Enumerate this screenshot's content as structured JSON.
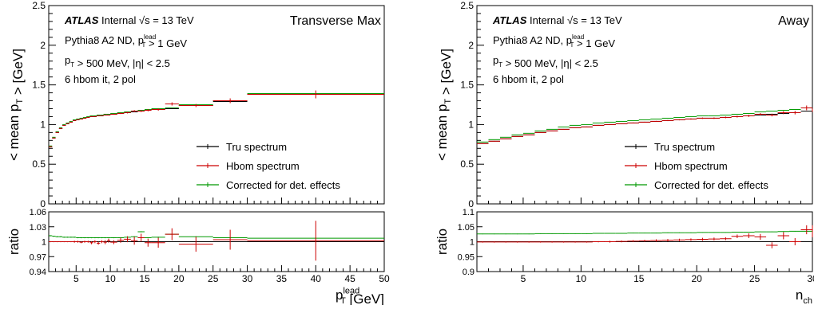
{
  "chart_data": [
    {
      "type": "line",
      "panel": "left",
      "title": "Transverse Max",
      "atlas_label": "ATLAS",
      "atlas_status": "Internal",
      "energy_label": "√s = 13 TeV",
      "info_lines": [
        "Pythia8 A2 ND, p_T^lead > 1 GeV",
        "p_T > 500 MeV, |η| < 2.5",
        "6 hbom it, 2 pol"
      ],
      "ylabel": "< mean p_T > [GeV]",
      "xlabel": "p_T^lead [GeV]",
      "ratio_ylabel": "ratio",
      "xlim": [
        1,
        50
      ],
      "ylim": [
        0,
        2.5
      ],
      "ratio_ylim": [
        0.94,
        1.06
      ],
      "yticks": [
        "0",
        "0.5",
        "1",
        "1.5",
        "2",
        "2.5"
      ],
      "xticks": [
        "5",
        "10",
        "15",
        "20",
        "25",
        "30",
        "35",
        "40",
        "45",
        "50"
      ],
      "ratio_yticks": [
        "0.94",
        "0.97",
        "1",
        "1.03",
        "1.06"
      ],
      "legend_position": "bottom-right",
      "legend": [
        {
          "name": "Tru spectrum",
          "color": "#000000"
        },
        {
          "name": "Hbom spectrum",
          "color": "#cc0000"
        },
        {
          "name": "Corrected for det. effects",
          "color": "#009900"
        }
      ],
      "bins": [
        [
          1,
          1.5
        ],
        [
          1.5,
          2
        ],
        [
          2,
          2.5
        ],
        [
          2.5,
          3
        ],
        [
          3,
          3.5
        ],
        [
          3.5,
          4
        ],
        [
          4,
          4.5
        ],
        [
          4.5,
          5
        ],
        [
          5,
          5.5
        ],
        [
          5.5,
          6
        ],
        [
          6,
          6.5
        ],
        [
          6.5,
          7
        ],
        [
          7,
          7.5
        ],
        [
          7.5,
          8
        ],
        [
          8,
          8.5
        ],
        [
          8.5,
          9
        ],
        [
          9,
          9.5
        ],
        [
          9.5,
          10
        ],
        [
          10,
          11
        ],
        [
          11,
          12
        ],
        [
          12,
          13
        ],
        [
          13,
          14
        ],
        [
          14,
          15
        ],
        [
          15,
          16
        ],
        [
          16,
          18
        ],
        [
          18,
          20
        ],
        [
          20,
          25
        ],
        [
          25,
          30
        ],
        [
          30,
          50
        ]
      ],
      "tru": [
        0.72,
        0.83,
        0.9,
        0.95,
        0.99,
        1.01,
        1.03,
        1.05,
        1.06,
        1.07,
        1.08,
        1.09,
        1.1,
        1.1,
        1.11,
        1.11,
        1.12,
        1.12,
        1.13,
        1.14,
        1.15,
        1.16,
        1.17,
        1.18,
        1.19,
        1.2,
        1.24,
        1.29,
        1.38
      ],
      "hbom": [
        0.72,
        0.83,
        0.9,
        0.95,
        0.99,
        1.01,
        1.03,
        1.05,
        1.06,
        1.07,
        1.08,
        1.09,
        1.1,
        1.1,
        1.11,
        1.11,
        1.12,
        1.12,
        1.13,
        1.14,
        1.15,
        1.17,
        1.17,
        1.18,
        1.19,
        1.26,
        1.24,
        1.3,
        1.38
      ],
      "hbom_err": [
        0.003,
        0.003,
        0.003,
        0.003,
        0.003,
        0.003,
        0.003,
        0.004,
        0.004,
        0.004,
        0.004,
        0.004,
        0.005,
        0.005,
        0.005,
        0.005,
        0.006,
        0.006,
        0.006,
        0.008,
        0.01,
        0.012,
        0.012,
        0.014,
        0.016,
        0.02,
        0.02,
        0.03,
        0.05
      ],
      "corr": [
        0.73,
        0.84,
        0.91,
        0.96,
        1.0,
        1.02,
        1.04,
        1.06,
        1.07,
        1.08,
        1.09,
        1.1,
        1.11,
        1.11,
        1.12,
        1.12,
        1.13,
        1.13,
        1.14,
        1.15,
        1.16,
        1.17,
        1.18,
        1.19,
        1.2,
        1.21,
        1.25,
        1.3,
        1.39
      ],
      "ratio_hbom": [
        1.0,
        1.0,
        1.0,
        1.0,
        1.0,
        1.0,
        1.0,
        1.0,
        1.0,
        0.999,
        1.0,
        1.0,
        0.998,
        1.0,
        0.997,
        1.0,
        0.999,
        1.002,
        0.999,
        1.003,
        1.005,
        1.002,
        1.008,
        0.998,
        0.998,
        1.015,
        0.995,
        1.004,
        1.002
      ],
      "ratio_hbom_err": [
        0.001,
        0.001,
        0.001,
        0.001,
        0.001,
        0.001,
        0.001,
        0.002,
        0.002,
        0.002,
        0.002,
        0.002,
        0.003,
        0.003,
        0.003,
        0.003,
        0.004,
        0.004,
        0.004,
        0.005,
        0.006,
        0.008,
        0.008,
        0.008,
        0.01,
        0.012,
        0.015,
        0.02,
        0.04
      ],
      "ratio_corr": [
        1.012,
        1.011,
        1.01,
        1.01,
        1.009,
        1.009,
        1.009,
        1.009,
        1.008,
        1.008,
        1.008,
        1.008,
        1.008,
        1.008,
        1.008,
        1.008,
        1.008,
        1.008,
        1.008,
        1.008,
        1.009,
        1.01,
        1.02,
        1.008,
        1.009,
        1.015,
        1.01,
        1.008,
        1.007
      ]
    },
    {
      "type": "line",
      "panel": "right",
      "title": "Away",
      "atlas_label": "ATLAS",
      "atlas_status": "Internal",
      "energy_label": "√s = 13 TeV",
      "info_lines": [
        "Pythia8 A2 ND, p_T^lead > 1 GeV",
        "p_T > 500 MeV, |η| < 2.5",
        "6 hbom it, 2 pol"
      ],
      "ylabel": "< mean p_T > [GeV]",
      "xlabel": "n_ch",
      "ratio_ylabel": "ratio",
      "xlim": [
        1,
        30
      ],
      "ylim": [
        0,
        2.5
      ],
      "ratio_ylim": [
        0.9,
        1.1
      ],
      "yticks": [
        "0",
        "0.5",
        "1",
        "1.5",
        "2",
        "2.5"
      ],
      "xticks": [
        "5",
        "10",
        "15",
        "20",
        "25",
        "30"
      ],
      "ratio_yticks": [
        "0.9",
        "0.95",
        "1",
        "1.05",
        "1.1"
      ],
      "legend_position": "bottom-right",
      "legend": [
        {
          "name": "Tru spectrum",
          "color": "#000000"
        },
        {
          "name": "Hbom spectrum",
          "color": "#cc0000"
        },
        {
          "name": "Corrected for det. effects",
          "color": "#009900"
        }
      ],
      "bins": [
        [
          1,
          2
        ],
        [
          2,
          3
        ],
        [
          3,
          4
        ],
        [
          4,
          5
        ],
        [
          5,
          6
        ],
        [
          6,
          7
        ],
        [
          7,
          8
        ],
        [
          8,
          9
        ],
        [
          9,
          10
        ],
        [
          10,
          11
        ],
        [
          11,
          12
        ],
        [
          12,
          13
        ],
        [
          13,
          14
        ],
        [
          14,
          15
        ],
        [
          15,
          16
        ],
        [
          16,
          17
        ],
        [
          17,
          18
        ],
        [
          18,
          19
        ],
        [
          19,
          20
        ],
        [
          20,
          21
        ],
        [
          21,
          22
        ],
        [
          22,
          23
        ],
        [
          23,
          24
        ],
        [
          24,
          25
        ],
        [
          25,
          26
        ],
        [
          26,
          27
        ],
        [
          27,
          28
        ],
        [
          28,
          29
        ],
        [
          29,
          30
        ],
        [
          30,
          31
        ]
      ],
      "tru": [
        0.76,
        0.79,
        0.82,
        0.85,
        0.87,
        0.9,
        0.92,
        0.94,
        0.96,
        0.97,
        0.99,
        1.0,
        1.01,
        1.02,
        1.03,
        1.04,
        1.05,
        1.06,
        1.07,
        1.08,
        1.08,
        1.09,
        1.1,
        1.11,
        1.12,
        1.13,
        1.14,
        1.15,
        1.17,
        1.18
      ],
      "hbom": [
        0.76,
        0.79,
        0.82,
        0.85,
        0.87,
        0.9,
        0.92,
        0.94,
        0.96,
        0.97,
        0.99,
        1.0,
        1.01,
        1.02,
        1.03,
        1.04,
        1.05,
        1.06,
        1.07,
        1.08,
        1.08,
        1.09,
        1.1,
        1.11,
        1.13,
        1.12,
        1.15,
        1.15,
        1.21,
        1.18
      ],
      "hbom_err": [
        0.004,
        0.004,
        0.004,
        0.004,
        0.004,
        0.004,
        0.004,
        0.004,
        0.004,
        0.005,
        0.005,
        0.005,
        0.005,
        0.006,
        0.006,
        0.006,
        0.007,
        0.007,
        0.008,
        0.009,
        0.01,
        0.011,
        0.012,
        0.014,
        0.015,
        0.017,
        0.02,
        0.022,
        0.03,
        0.02
      ],
      "corr": [
        0.78,
        0.81,
        0.84,
        0.87,
        0.89,
        0.92,
        0.94,
        0.97,
        0.99,
        1.0,
        1.02,
        1.03,
        1.04,
        1.05,
        1.06,
        1.07,
        1.08,
        1.09,
        1.1,
        1.11,
        1.11,
        1.12,
        1.13,
        1.14,
        1.16,
        1.17,
        1.18,
        1.19,
        1.21,
        1.22
      ],
      "ratio_hbom": [
        0.999,
        0.999,
        0.999,
        0.999,
        0.999,
        0.999,
        0.999,
        0.999,
        0.999,
        0.999,
        1.0,
        1.0,
        1.001,
        1.002,
        1.003,
        1.004,
        1.005,
        1.006,
        1.007,
        1.008,
        1.009,
        1.01,
        1.018,
        1.02,
        1.016,
        0.988,
        1.02,
        1.0,
        1.04,
        1.035
      ],
      "ratio_hbom_err": [
        0.002,
        0.002,
        0.002,
        0.002,
        0.002,
        0.002,
        0.002,
        0.002,
        0.002,
        0.002,
        0.002,
        0.003,
        0.003,
        0.003,
        0.003,
        0.004,
        0.004,
        0.004,
        0.004,
        0.005,
        0.005,
        0.005,
        0.006,
        0.008,
        0.01,
        0.01,
        0.012,
        0.012,
        0.015,
        0.02
      ],
      "ratio_corr": [
        1.026,
        1.026,
        1.026,
        1.026,
        1.026,
        1.027,
        1.027,
        1.027,
        1.027,
        1.027,
        1.028,
        1.028,
        1.028,
        1.029,
        1.029,
        1.029,
        1.03,
        1.03,
        1.03,
        1.031,
        1.031,
        1.031,
        1.032,
        1.032,
        1.033,
        1.033,
        1.034,
        1.035,
        1.035,
        1.036
      ]
    }
  ]
}
